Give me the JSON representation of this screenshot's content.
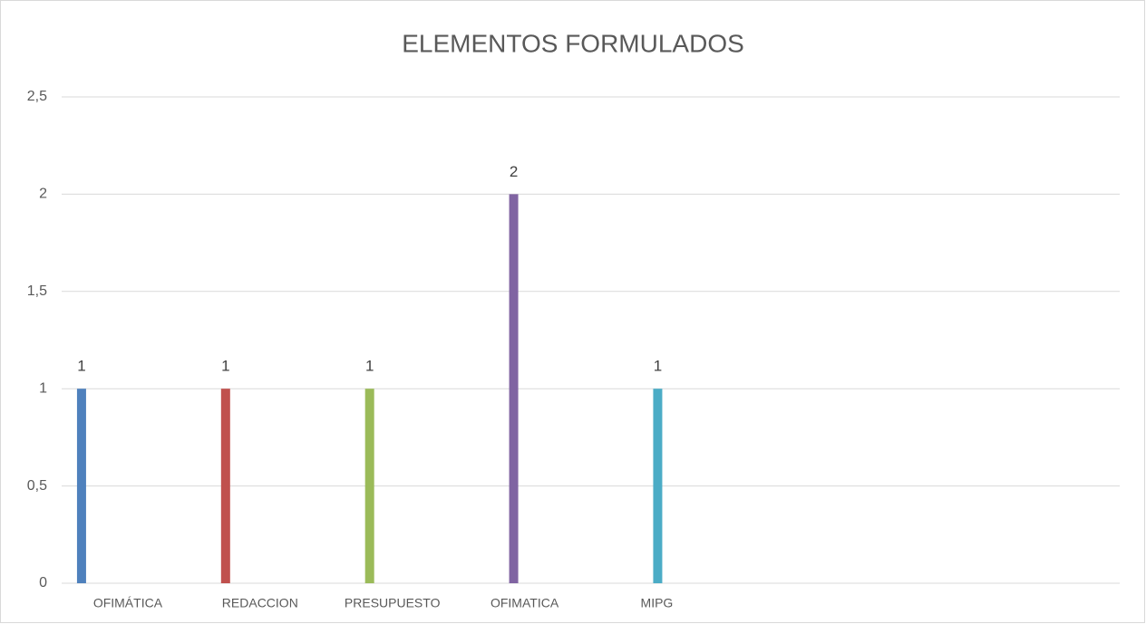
{
  "chart_data": {
    "type": "bar",
    "title": "ELEMENTOS FORMULADOS",
    "categories": [
      "OFIMÁTICA",
      "REDACCION",
      "PRESUPUESTO",
      "OFIMATICA",
      "MIPG",
      null,
      null,
      null
    ],
    "values": [
      1,
      1,
      1,
      2,
      1,
      null,
      null,
      null
    ],
    "colors": [
      "#4f81bd",
      "#c0504d",
      "#9bbb59",
      "#8064a2",
      "#4bacc6",
      null,
      null,
      null
    ],
    "ylim": [
      0,
      2.5
    ],
    "yticks": [
      0,
      {
        "value": 0.5,
        "label": "0,5"
      },
      1,
      {
        "value": 1.5,
        "label": "1,5"
      },
      2,
      {
        "value": 2.5,
        "label": "2,5"
      }
    ],
    "grid": true
  }
}
